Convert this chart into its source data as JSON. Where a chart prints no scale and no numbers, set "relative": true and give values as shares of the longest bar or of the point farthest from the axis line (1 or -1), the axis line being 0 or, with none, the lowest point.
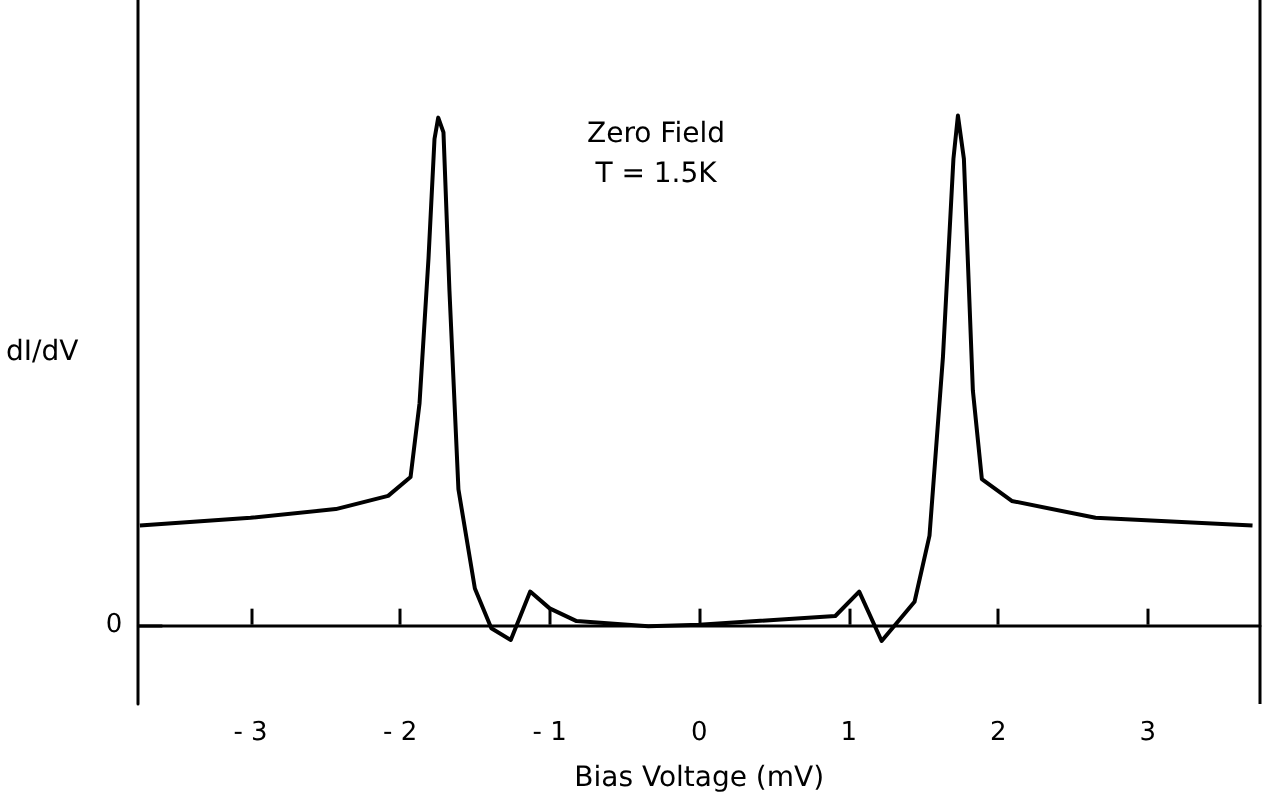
{
  "chart_data": {
    "type": "line",
    "relative": true,
    "xlabel": "Bias Voltage (mV)",
    "ylabel": "dI/dV",
    "annotations": [
      "Zero Field",
      "T = 1.5K",
      "0"
    ],
    "x": [
      -3.74,
      -3.0,
      -2.43,
      -2.08,
      -1.93,
      -1.87,
      -1.81,
      -1.77,
      -1.745,
      -1.71,
      -1.67,
      -1.61,
      -1.5,
      -1.39,
      -1.26,
      -1.13,
      -1.0,
      -0.82,
      -0.34,
      0,
      0.91,
      1.07,
      1.22,
      1.44,
      1.54,
      1.63,
      1.7,
      1.73,
      1.77,
      1.83,
      1.89,
      2.09,
      2.65,
      3.7
    ],
    "values": [
      0.195,
      0.21,
      0.227,
      0.253,
      0.29,
      0.435,
      0.72,
      0.954,
      0.996,
      0.967,
      0.656,
      0.266,
      0.071,
      -0.007,
      -0.03,
      0.065,
      0.032,
      0.007,
      -0.003,
      0,
      0.017,
      0.065,
      -0.032,
      0.045,
      0.175,
      0.526,
      0.915,
      1.0,
      0.915,
      0.46,
      0.286,
      0.243,
      0.21,
      0.195
    ],
    "color": "#000000",
    "marker": "none",
    "line_style": "solid",
    "xlim": [
      -3.75,
      3.75
    ],
    "xticks": [
      -3,
      -2,
      -1,
      0,
      1,
      2,
      3
    ],
    "grid": false
  }
}
